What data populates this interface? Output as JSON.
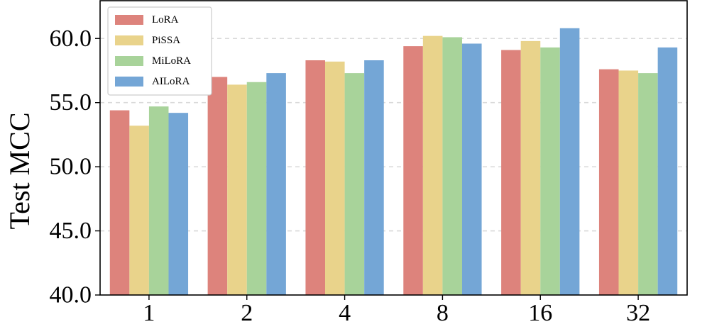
{
  "chart_data": {
    "type": "bar",
    "title": "",
    "xlabel": "",
    "ylabel": "Test MCC",
    "categories": [
      "1",
      "2",
      "4",
      "8",
      "16",
      "32"
    ],
    "ylim": [
      40.0,
      63.0
    ],
    "yticks": [
      40.0,
      45.0,
      50.0,
      55.0,
      60.0
    ],
    "ytick_labels": [
      "40.0",
      "45.0",
      "50.0",
      "55.0",
      "60.0"
    ],
    "grid": "horizontal-dashed",
    "legend_position": "top-left",
    "series": [
      {
        "name": "LoRA",
        "color": "#dd837c",
        "values": [
          54.4,
          57.0,
          58.3,
          59.4,
          59.1,
          57.6
        ]
      },
      {
        "name": "PiSSA",
        "color": "#e9d38b",
        "values": [
          53.2,
          56.4,
          58.2,
          60.2,
          59.8,
          57.5
        ]
      },
      {
        "name": "MiLoRA",
        "color": "#a8d39a",
        "values": [
          54.7,
          56.6,
          57.3,
          60.1,
          59.3,
          57.3
        ]
      },
      {
        "name": "AILoRA",
        "color": "#74a6d6",
        "values": [
          54.2,
          57.3,
          58.3,
          59.6,
          60.8,
          59.3
        ]
      }
    ]
  }
}
